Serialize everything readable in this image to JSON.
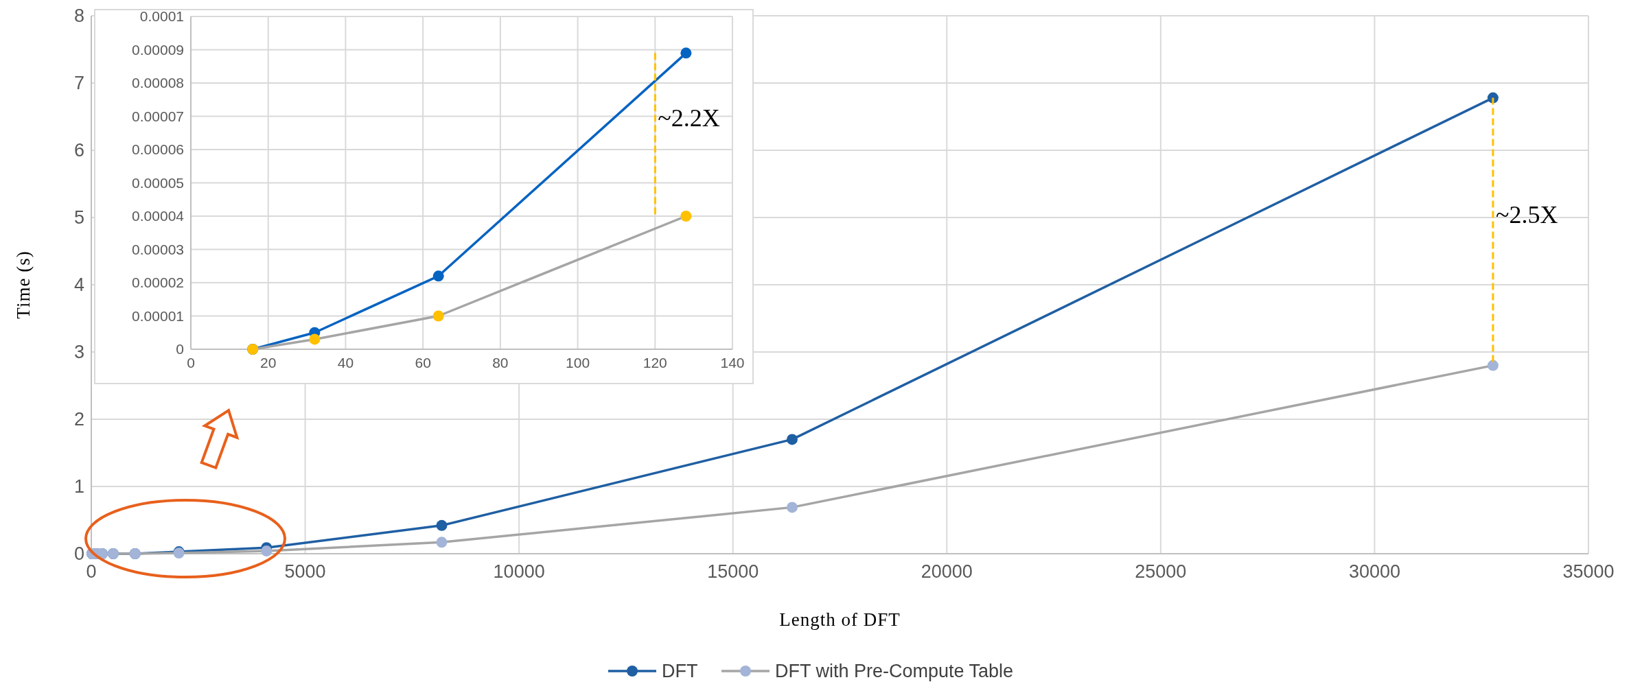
{
  "chart_data": [
    {
      "type": "line",
      "xlabel": "Length of DFT",
      "ylabel": "Time (s)",
      "x": [
        16,
        32,
        64,
        128,
        256,
        512,
        1024,
        2048,
        4096,
        8192,
        16384,
        32768
      ],
      "xlim": [
        0,
        35000
      ],
      "xticks": [
        0,
        5000,
        10000,
        15000,
        20000,
        25000,
        30000,
        35000
      ],
      "ylim": [
        0,
        8
      ],
      "yticks": [
        0,
        1,
        2,
        3,
        4,
        5,
        6,
        7,
        8
      ],
      "grid": true,
      "legend": "bottom",
      "marker": "circle",
      "line_style": "solid",
      "series": [
        {
          "name": "DFT",
          "color": "#1f5fa3",
          "values": [
            0,
            0,
            0,
            0,
            0,
            0,
            0,
            0.03,
            0.09,
            0.42,
            1.7,
            6.78
          ]
        },
        {
          "name": "DFT with Pre-Compute Table",
          "color": "#a5a5a5",
          "colors": [
            "#a3b4d8",
            "#a3b4d8",
            "#a3b4d8",
            "#a3b4d8",
            "#a3b4d8",
            "#a3b4d8",
            "#a3b4d8",
            "#a3b4d8",
            "#a3b4d8",
            "#a3b4d8",
            "#a3b4d8",
            "#a3b4d8"
          ],
          "values": [
            0,
            0,
            0,
            0,
            0,
            0,
            0,
            0.01,
            0.04,
            0.17,
            0.69,
            2.8
          ]
        }
      ],
      "annotations": [
        "~2.5X"
      ]
    },
    {
      "type": "line",
      "x": [
        16,
        32,
        64,
        128
      ],
      "xlim": [
        0,
        140
      ],
      "xticks": [
        0,
        20,
        40,
        60,
        80,
        100,
        120,
        140
      ],
      "ylim": [
        0,
        0.0001
      ],
      "yticks": [
        0,
        {
          "value": 1e-05,
          "label": "0.00001"
        },
        {
          "value": 2e-05,
          "label": "0.00002"
        },
        {
          "value": 3e-05,
          "label": "0.00003"
        },
        {
          "value": 4e-05,
          "label": "0.00004"
        },
        {
          "value": 5e-05,
          "label": "0.00005"
        },
        {
          "value": 6e-05,
          "label": "0.00006"
        },
        {
          "value": 7e-05,
          "label": "0.00007"
        },
        {
          "value": 8e-05,
          "label": "0.00008"
        },
        {
          "value": 9e-05,
          "label": "0.00009"
        },
        0.0001
      ],
      "grid": true,
      "marker": "circle",
      "line_style": "solid",
      "series": [
        {
          "color": "#0563c1",
          "values": [
            0,
            5e-06,
            2.2e-05,
            8.9e-05
          ]
        },
        {
          "color": "#a5a5a5",
          "colors": [
            "#ffc000",
            "#ffc000",
            "#ffc000",
            "#ffc000"
          ],
          "values": [
            0,
            3e-06,
            1e-05,
            4e-05
          ]
        }
      ],
      "annotations": [
        "~2.2X"
      ]
    }
  ]
}
